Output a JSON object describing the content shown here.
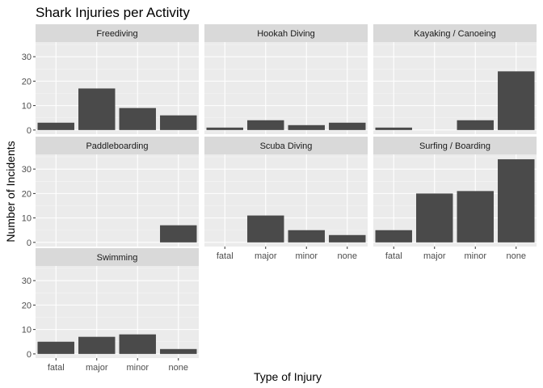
{
  "chart_data": {
    "type": "bar",
    "title": "Shark Injuries per Activity",
    "xlabel": "Type of Injury",
    "ylabel": "Number of Incidents",
    "categories": [
      "fatal",
      "major",
      "minor",
      "none"
    ],
    "ylim": [
      -1.7,
      36
    ],
    "yticks": [
      0,
      10,
      20,
      30
    ],
    "grid": true,
    "colors": {
      "bar": "#4a4a4a",
      "panel_bg": "#ebebeb",
      "strip_bg": "#d9d9d9",
      "grid_major": "#ffffff",
      "grid_minor": "#f5f5f5",
      "tick": "#333333"
    },
    "facets": [
      {
        "name": "Freediving",
        "values": [
          3,
          17,
          9,
          6
        ]
      },
      {
        "name": "Hookah Diving",
        "values": [
          1,
          4,
          2,
          3
        ]
      },
      {
        "name": "Kayaking / Canoeing",
        "values": [
          1,
          0,
          4,
          24
        ]
      },
      {
        "name": "Paddleboarding",
        "values": [
          0,
          0,
          0,
          7
        ]
      },
      {
        "name": "Scuba Diving",
        "values": [
          0,
          11,
          5,
          3
        ]
      },
      {
        "name": "Surfing / Boarding",
        "values": [
          5,
          20,
          21,
          34
        ]
      },
      {
        "name": "Swimming",
        "values": [
          5,
          7,
          8,
          2
        ]
      }
    ]
  }
}
